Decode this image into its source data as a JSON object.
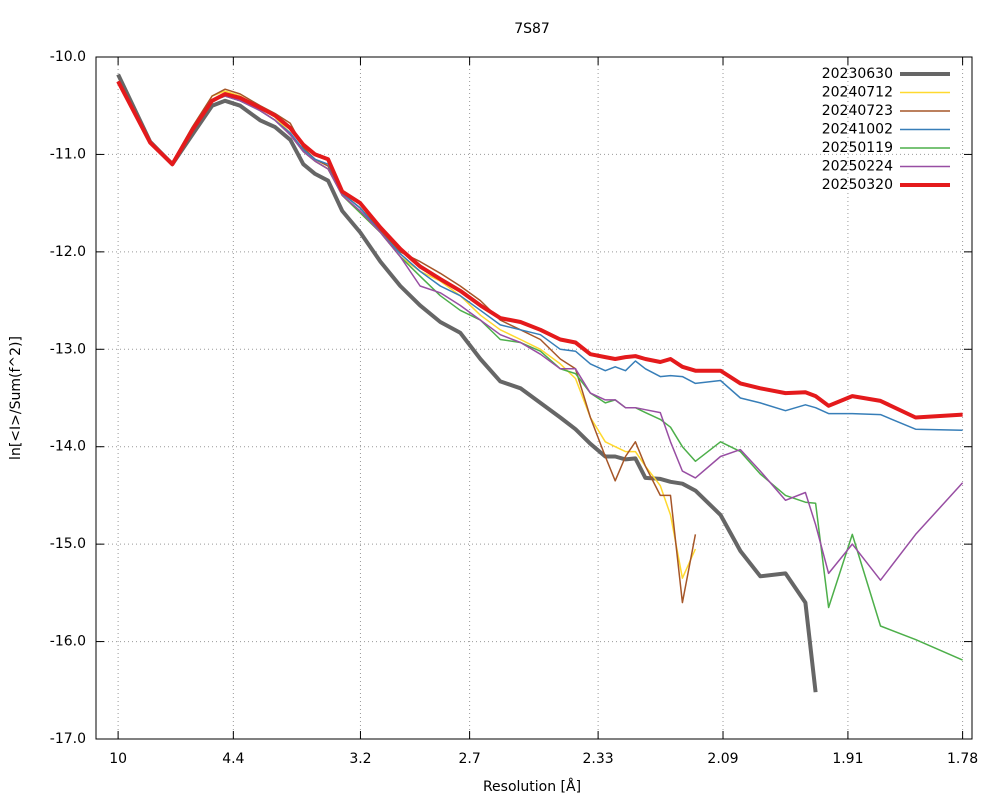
{
  "chart_data": {
    "type": "line",
    "title": "7S87",
    "x_label": "Resolution [Å]",
    "y_label": "ln[<I>/Sum(f^2)]",
    "x": [
      0.01,
      0.0216,
      0.0296,
      0.0368,
      0.044,
      0.0487,
      0.0542,
      0.0614,
      0.0668,
      0.0723,
      0.077,
      0.0813,
      0.086,
      0.0911,
      0.0976,
      0.1049,
      0.1121,
      0.1193,
      0.1266,
      0.1338,
      0.1411,
      0.1483,
      0.1556,
      0.1628,
      0.17,
      0.1755,
      0.1809,
      0.1863,
      0.1899,
      0.1936,
      0.1972,
      0.2008,
      0.2062,
      0.2099,
      0.2142,
      0.2189,
      0.228,
      0.2352,
      0.2424,
      0.2515,
      0.2587,
      0.2624,
      0.2671,
      0.2757,
      0.2859,
      0.2986,
      0.3156
    ],
    "xlim": [
      0.002,
      0.319
    ],
    "xticks": [
      {
        "value": 0.01,
        "label": "10"
      },
      {
        "value": 0.0517,
        "label": "4.4"
      },
      {
        "value": 0.0977,
        "label": "3.2"
      },
      {
        "value": 0.1372,
        "label": "2.7"
      },
      {
        "value": 0.1837,
        "label": "2.33"
      },
      {
        "value": 0.2289,
        "label": "2.09"
      },
      {
        "value": 0.2741,
        "label": "1.91"
      },
      {
        "value": 0.3156,
        "label": "1.78"
      }
    ],
    "ylim": [
      -17,
      -10
    ],
    "yticks": [
      {
        "value": -10,
        "label": "-10.0"
      },
      {
        "value": -11,
        "label": "-11.0"
      },
      {
        "value": -12,
        "label": "-12.0"
      },
      {
        "value": -13,
        "label": "-13.0"
      },
      {
        "value": -14,
        "label": "-14.0"
      },
      {
        "value": -15,
        "label": "-15.0"
      },
      {
        "value": -16,
        "label": "-16.0"
      },
      {
        "value": -17,
        "label": "-17.0"
      }
    ],
    "grid": true,
    "legend": "top-right",
    "series": [
      {
        "name": "20230630",
        "color": "#666666",
        "width": 4,
        "values": [
          -10.18,
          -10.87,
          -11.1,
          -10.8,
          -10.5,
          -10.45,
          -10.5,
          -10.65,
          -10.72,
          -10.85,
          -11.1,
          -11.2,
          -11.27,
          -11.58,
          -11.8,
          -12.1,
          -12.35,
          -12.55,
          -12.72,
          -12.83,
          -13.1,
          -13.33,
          -13.4,
          -13.55,
          -13.7,
          -13.82,
          -13.97,
          -14.1,
          -14.1,
          -14.13,
          -14.12,
          -14.32,
          -14.33,
          -14.36,
          -14.38,
          -14.45,
          -14.7,
          -15.07,
          -15.33,
          -15.3,
          -15.6,
          -16.52,
          null,
          null,
          null,
          null,
          null
        ]
      },
      {
        "name": "20240712",
        "color": "#ffd92f",
        "width": 1.5,
        "values": [
          -10.25,
          -10.88,
          -11.1,
          -10.75,
          -10.4,
          -10.35,
          -10.4,
          -10.52,
          -10.62,
          -10.78,
          -10.97,
          -11.07,
          -11.15,
          -11.42,
          -11.6,
          -11.8,
          -12.05,
          -12.2,
          -12.3,
          -12.45,
          -12.65,
          -12.8,
          -12.9,
          -13.0,
          -13.15,
          -13.3,
          -13.7,
          -13.95,
          -14.0,
          -14.05,
          -14.05,
          -14.2,
          -14.4,
          -14.7,
          -15.35,
          -15.05,
          null,
          null,
          null,
          null,
          null,
          null,
          null,
          null,
          null,
          null,
          null
        ]
      },
      {
        "name": "20240723",
        "color": "#a65628",
        "width": 1.5,
        "values": [
          -10.25,
          -10.88,
          -11.08,
          -10.72,
          -10.4,
          -10.33,
          -10.38,
          -10.5,
          -10.58,
          -10.68,
          -10.93,
          -11.05,
          -11.12,
          -11.4,
          -11.55,
          -11.78,
          -12.0,
          -12.1,
          -12.22,
          -12.35,
          -12.5,
          -12.7,
          -12.8,
          -12.9,
          -13.1,
          -13.2,
          -13.7,
          -14.1,
          -14.35,
          -14.1,
          -13.95,
          -14.2,
          -14.5,
          -14.5,
          -15.6,
          -14.9,
          null,
          null,
          null,
          null,
          null,
          null,
          null,
          null,
          null,
          null,
          null
        ]
      },
      {
        "name": "20241002",
        "color": "#377eb8",
        "width": 1.5,
        "values": [
          -10.25,
          -10.88,
          -11.1,
          -10.75,
          -10.45,
          -10.4,
          -10.45,
          -10.55,
          -10.65,
          -10.78,
          -10.95,
          -11.05,
          -11.1,
          -11.4,
          -11.55,
          -11.8,
          -12.02,
          -12.2,
          -12.35,
          -12.45,
          -12.6,
          -12.75,
          -12.8,
          -12.85,
          -13.0,
          -13.02,
          -13.15,
          -13.22,
          -13.18,
          -13.22,
          -13.12,
          -13.2,
          -13.28,
          -13.27,
          -13.28,
          -13.35,
          -13.32,
          -13.5,
          -13.55,
          -13.63,
          -13.57,
          -13.6,
          -13.66,
          -13.66,
          -13.67,
          -13.82,
          -13.83
        ]
      },
      {
        "name": "20250119",
        "color": "#4daf4a",
        "width": 1.5,
        "values": [
          -10.25,
          -10.88,
          -11.1,
          -10.75,
          -10.45,
          -10.4,
          -10.45,
          -10.55,
          -10.65,
          -10.8,
          -10.97,
          -11.07,
          -11.15,
          -11.42,
          -11.6,
          -11.8,
          -12.05,
          -12.25,
          -12.45,
          -12.6,
          -12.7,
          -12.9,
          -12.93,
          -13.02,
          -13.2,
          -13.25,
          -13.45,
          -13.55,
          -13.52,
          -13.6,
          -13.6,
          -13.65,
          -13.72,
          -13.8,
          -14.0,
          -14.15,
          -13.95,
          -14.05,
          -14.28,
          -14.5,
          -14.57,
          -14.58,
          -15.65,
          -14.9,
          -15.84,
          -15.98,
          -16.19
        ]
      },
      {
        "name": "20250224",
        "color": "#984ea3",
        "width": 1.5,
        "values": [
          -10.25,
          -10.88,
          -11.1,
          -10.75,
          -10.45,
          -10.4,
          -10.45,
          -10.55,
          -10.65,
          -10.8,
          -10.97,
          -11.07,
          -11.15,
          -11.42,
          -11.58,
          -11.8,
          -12.05,
          -12.35,
          -12.42,
          -12.55,
          -12.7,
          -12.85,
          -12.93,
          -13.05,
          -13.2,
          -13.2,
          -13.45,
          -13.52,
          -13.52,
          -13.6,
          -13.6,
          -13.62,
          -13.65,
          -13.95,
          -14.25,
          -14.32,
          -14.1,
          -14.03,
          -14.25,
          -14.55,
          -14.47,
          -14.8,
          -15.3,
          -15.0,
          -15.37,
          -14.9,
          -14.37
        ]
      },
      {
        "name": "20250320",
        "color": "#e41a1c",
        "width": 4,
        "values": [
          -10.25,
          -10.88,
          -11.1,
          -10.75,
          -10.45,
          -10.38,
          -10.42,
          -10.52,
          -10.6,
          -10.73,
          -10.9,
          -11.0,
          -11.05,
          -11.38,
          -11.5,
          -11.75,
          -11.97,
          -12.15,
          -12.28,
          -12.4,
          -12.55,
          -12.68,
          -12.72,
          -12.8,
          -12.9,
          -12.93,
          -13.05,
          -13.08,
          -13.1,
          -13.08,
          -13.07,
          -13.1,
          -13.13,
          -13.1,
          -13.18,
          -13.22,
          -13.22,
          -13.35,
          -13.4,
          -13.45,
          -13.44,
          -13.48,
          -13.58,
          -13.48,
          -13.53,
          -13.7,
          -13.67
        ]
      }
    ]
  }
}
